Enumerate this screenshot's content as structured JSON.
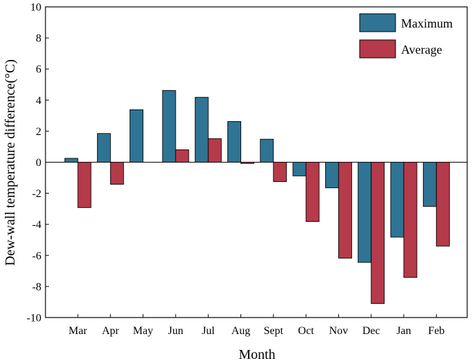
{
  "chart_data": {
    "type": "bar",
    "categories": [
      "Mar",
      "Apr",
      "May",
      "Jun",
      "Jul",
      "Aug",
      "Sept",
      "Oct",
      "Nov",
      "Dec",
      "Jan",
      "Feb"
    ],
    "series": [
      {
        "name": "Maximum",
        "color": "#2f7494",
        "values": [
          0.25,
          1.85,
          3.38,
          4.62,
          4.18,
          2.62,
          1.48,
          -0.88,
          -1.65,
          -6.45,
          -4.82,
          -2.85
        ]
      },
      {
        "name": "Average",
        "color": "#b53a4a",
        "values": [
          -2.92,
          -1.42,
          0.0,
          0.8,
          1.52,
          -0.08,
          -1.25,
          -3.82,
          -6.18,
          -9.1,
          -7.42,
          -5.4
        ]
      }
    ],
    "title": "",
    "xlabel": "Month",
    "ylabel": "Dew-wall temperature difference(°C)",
    "ylim": [
      -10,
      10
    ],
    "yticks": [
      -10,
      -8,
      -6,
      -4,
      -2,
      0,
      2,
      4,
      6,
      8,
      10
    ],
    "legend_position": "top-right",
    "grid": false
  }
}
